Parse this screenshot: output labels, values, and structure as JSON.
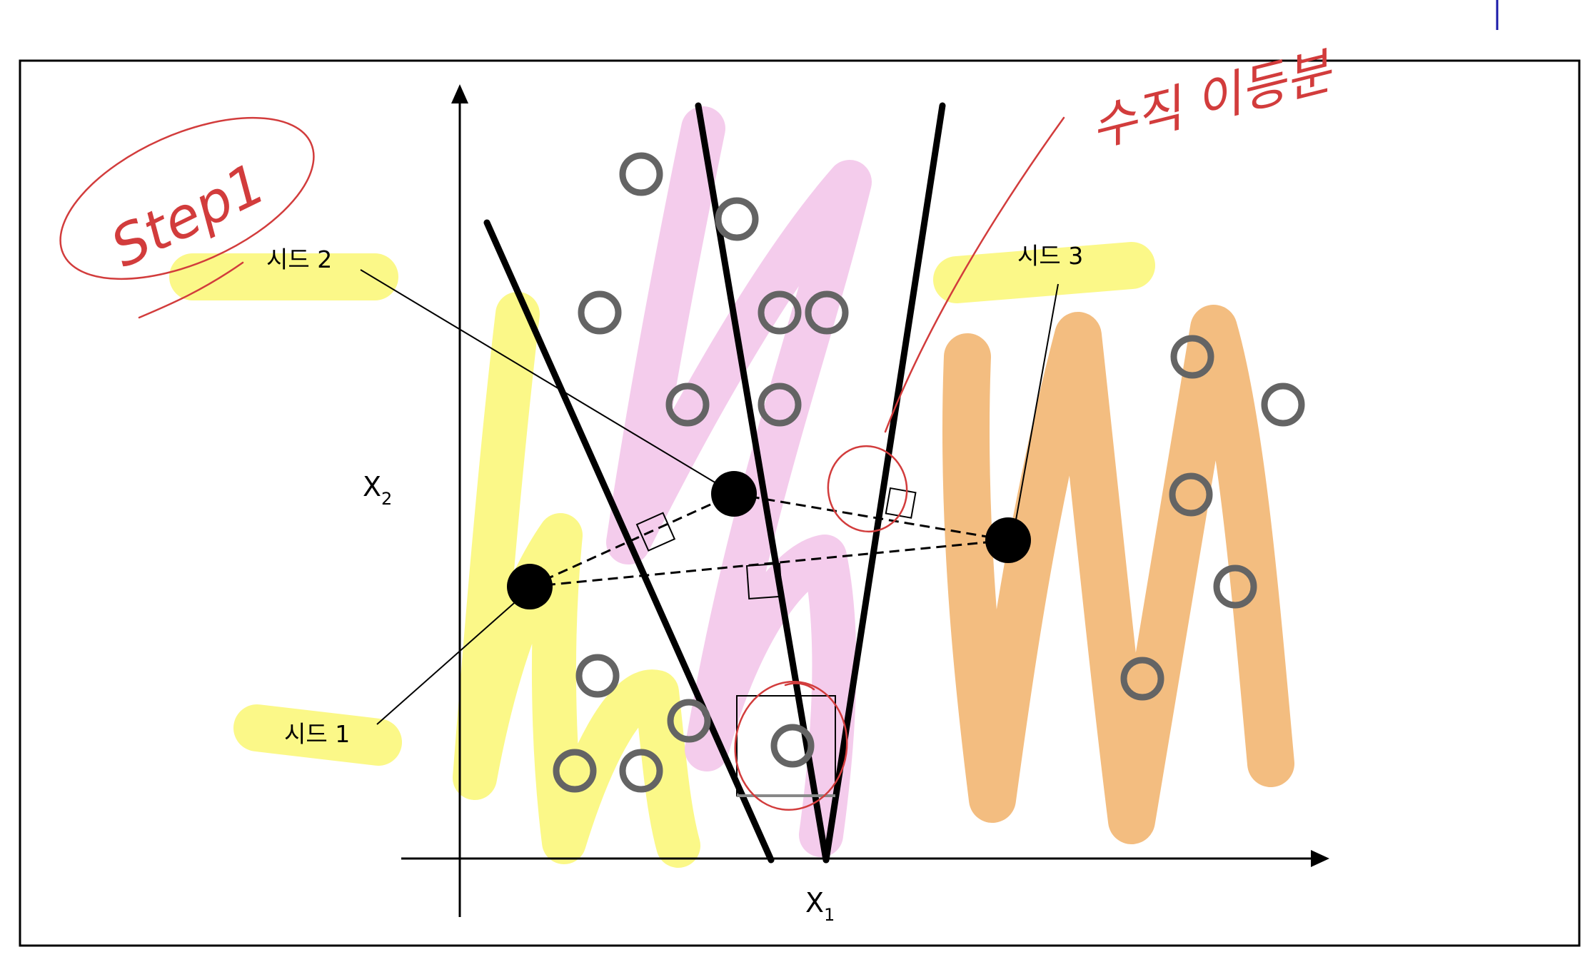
{
  "labels": {
    "seed1": "시드 1",
    "seed2": "시드 2",
    "seed3": "시드 3",
    "x_axis": "X",
    "x_axis_sub": "1",
    "y_axis": "X",
    "y_axis_sub": "2"
  },
  "annotations": {
    "step": "Step1",
    "note": "수직 이등분"
  },
  "colors": {
    "frame": "#000000",
    "yellow_highlight": "#fbf77b",
    "pink_highlight": "#f3c6ea",
    "orange_highlight": "#f2b672",
    "point_ring": "#646464",
    "seed_fill": "#000000",
    "pen": "#d23c3c",
    "corner_mark": "#1a1aa8"
  },
  "seeds": [
    {
      "name": "seed-1",
      "label_key": "seed1"
    },
    {
      "name": "seed-2",
      "label_key": "seed2"
    },
    {
      "name": "seed-3",
      "label_key": "seed3"
    }
  ],
  "point_count": 20
}
